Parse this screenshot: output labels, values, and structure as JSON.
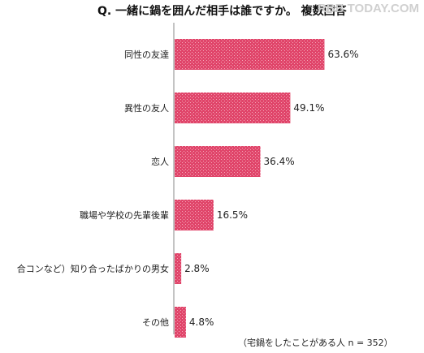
{
  "title": "Q. 一緒に鍋を囲んだ相手は誰ですか。 複数回答",
  "watermark": "RBB TODAY.COM",
  "footnote": "（宅鍋をしたことがある人 n = 352）",
  "colors": {
    "bar": "#e0456a",
    "axis": "#888888"
  },
  "chart_data": {
    "type": "bar",
    "orientation": "horizontal",
    "categories": [
      "同性の友達",
      "異性の友人",
      "恋人",
      "職場や学校の先輩後輩",
      "合コンなど）知り合ったばかりの男女",
      "その他"
    ],
    "values": [
      63.6,
      49.1,
      36.4,
      16.5,
      2.8,
      4.8
    ],
    "value_labels": [
      "63.6%",
      "49.1%",
      "36.4%",
      "16.5%",
      "2.8%",
      "4.8%"
    ],
    "xlim": [
      0,
      100
    ],
    "unit": "%"
  }
}
